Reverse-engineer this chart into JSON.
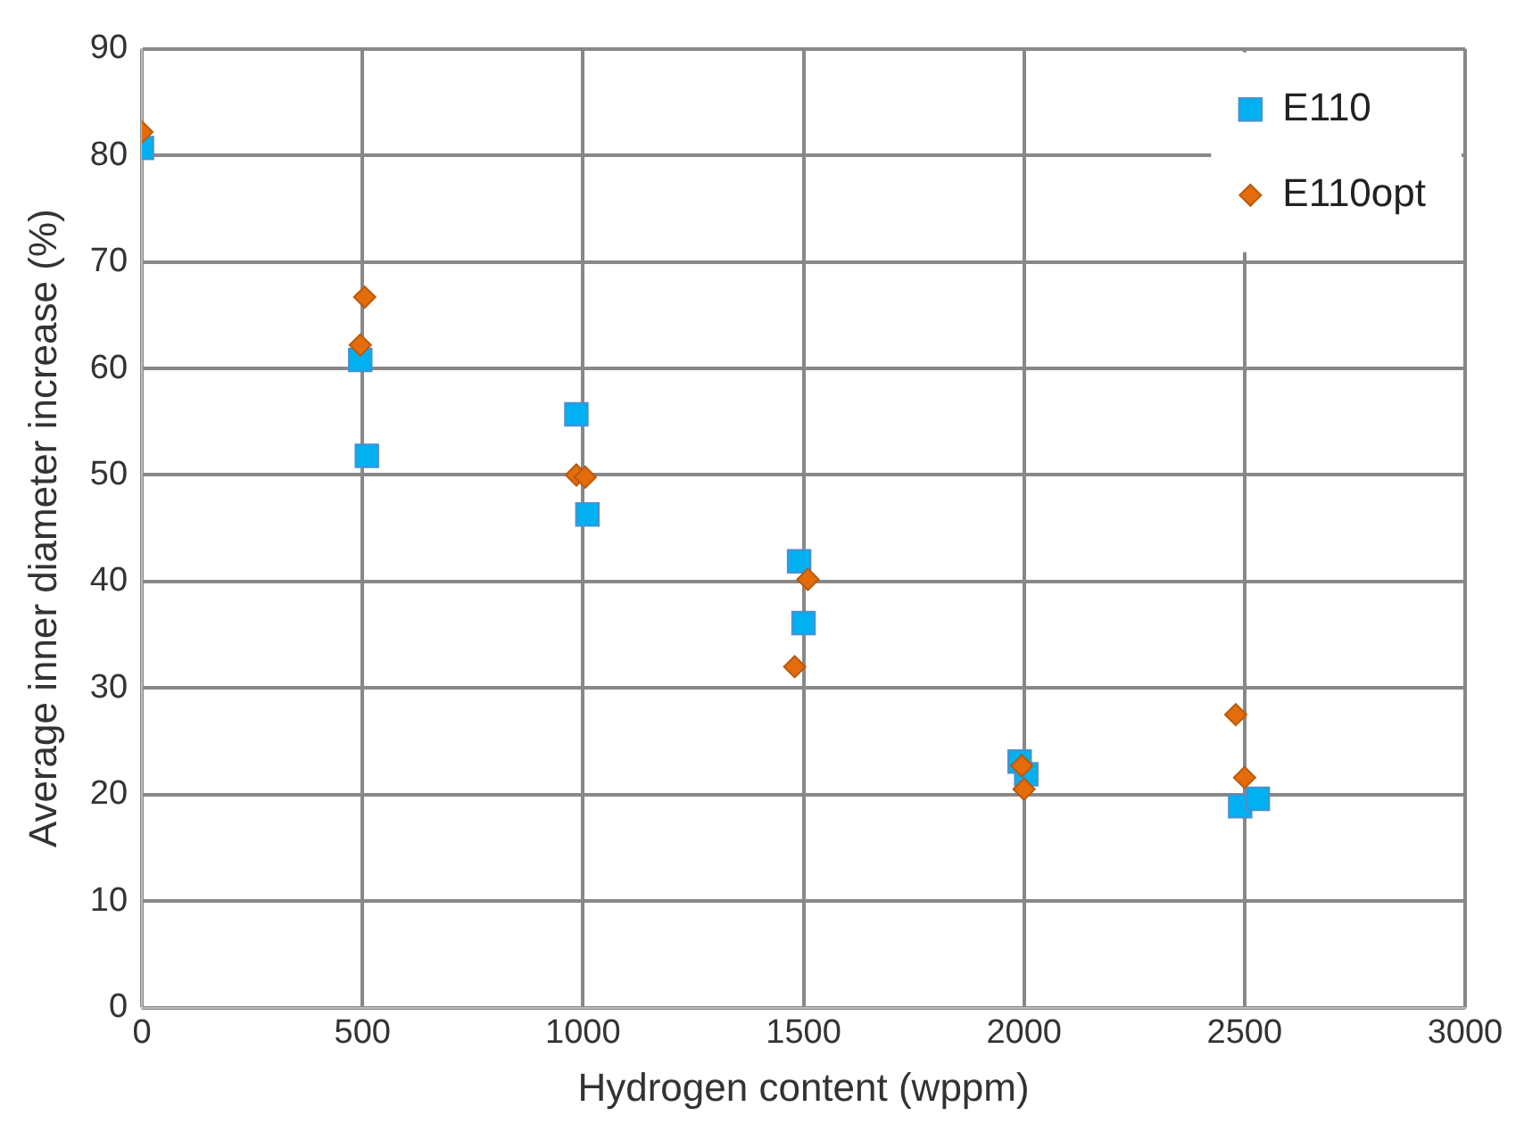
{
  "chart_data": {
    "type": "scatter",
    "xlabel": "Hydrogen content (wppm)",
    "ylabel": "Average inner diameter increase (%)",
    "xlim": [
      0,
      3000
    ],
    "xticks": [
      0,
      500,
      1000,
      1500,
      2000,
      2500,
      3000
    ],
    "ylim": [
      0,
      90
    ],
    "yticks": [
      0,
      10,
      20,
      30,
      40,
      50,
      60,
      70,
      80,
      90
    ],
    "grid": true,
    "legend": "top right",
    "series": [
      {
        "name": "E110",
        "color": "#00b0f0",
        "marker": "square",
        "x": [
          0,
          495,
          510,
          985,
          1010,
          1490,
          1500,
          1990,
          2005,
          2490,
          2530
        ],
        "values": [
          80.7,
          60.8,
          51.8,
          55.7,
          46.3,
          41.9,
          36.1,
          23.1,
          21.9,
          18.9,
          19.6
        ]
      },
      {
        "name": "E110opt",
        "color": "#e46c0a",
        "marker": "diamond",
        "x": [
          0,
          505,
          495,
          985,
          1005,
          1480,
          1510,
          1995,
          2000,
          2480,
          2500
        ],
        "values": [
          82.2,
          66.7,
          62.2,
          50.0,
          49.8,
          32.0,
          40.2,
          22.7,
          20.5,
          27.5,
          21.6
        ]
      }
    ]
  }
}
